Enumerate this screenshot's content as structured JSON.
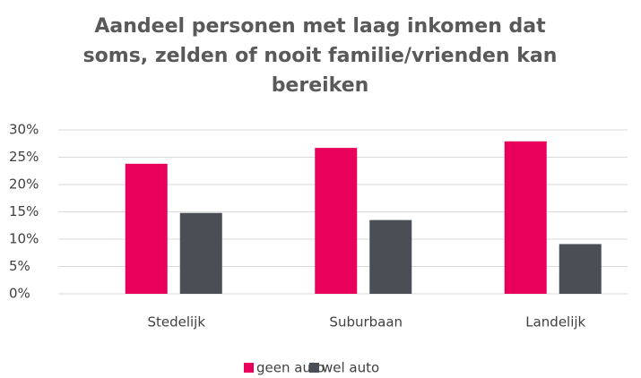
{
  "chart_data": {
    "type": "bar",
    "title": [
      "Aandeel personen met laag inkomen dat",
      "soms, zelden of nooit familie/vrienden kan",
      "bereiken"
    ],
    "categories": [
      "Stedelijk",
      "Suburbaan",
      "Landelijk"
    ],
    "series": [
      {
        "name": "geen auto",
        "color": "#e8005a",
        "values": [
          23.8,
          26.7,
          27.9
        ]
      },
      {
        "name": "wel auto",
        "color": "#4a4f55",
        "values": [
          14.8,
          13.5,
          9.1
        ]
      }
    ],
    "ylim": [
      0,
      30
    ],
    "yticks": [
      {
        "value": 0,
        "label": "0%"
      },
      {
        "value": 5,
        "label": "5%"
      },
      {
        "value": 10,
        "label": "10%"
      },
      {
        "value": 15,
        "label": "15%"
      },
      {
        "value": 20,
        "label": "20%"
      },
      {
        "value": 25,
        "label": "25%"
      },
      {
        "value": 30,
        "label": "30%"
      }
    ],
    "grid": true,
    "legend": "bottom"
  }
}
